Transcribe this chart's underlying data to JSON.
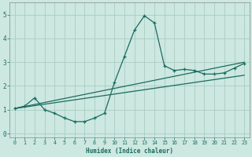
{
  "xlabel": "Humidex (Indice chaleur)",
  "bg_color": "#cce8e0",
  "grid_color": "#aaccc4",
  "line_color": "#1a6b60",
  "xlim": [
    -0.5,
    23.5
  ],
  "ylim": [
    -0.15,
    5.5
  ],
  "xticks": [
    0,
    1,
    2,
    3,
    4,
    5,
    6,
    7,
    8,
    9,
    10,
    11,
    12,
    13,
    14,
    15,
    16,
    17,
    18,
    19,
    20,
    21,
    22,
    23
  ],
  "yticks": [
    0,
    1,
    2,
    3,
    4,
    5
  ],
  "line1_x": [
    0,
    1,
    2,
    3,
    4,
    5,
    6,
    7,
    8,
    9,
    10,
    11,
    12,
    13,
    14,
    15,
    16,
    17,
    18,
    19,
    20,
    21,
    22,
    23
  ],
  "line1_y": [
    1.05,
    1.15,
    1.5,
    1.0,
    0.85,
    0.65,
    0.5,
    0.5,
    0.65,
    0.85,
    2.15,
    3.25,
    4.35,
    4.95,
    4.65,
    2.85,
    2.65,
    2.7,
    2.65,
    2.5,
    2.5,
    2.55,
    2.75,
    2.95
  ],
  "line2_x": [
    0,
    23
  ],
  "line2_y": [
    1.05,
    2.45
  ],
  "line3_x": [
    0,
    23
  ],
  "line3_y": [
    1.05,
    3.0
  ]
}
